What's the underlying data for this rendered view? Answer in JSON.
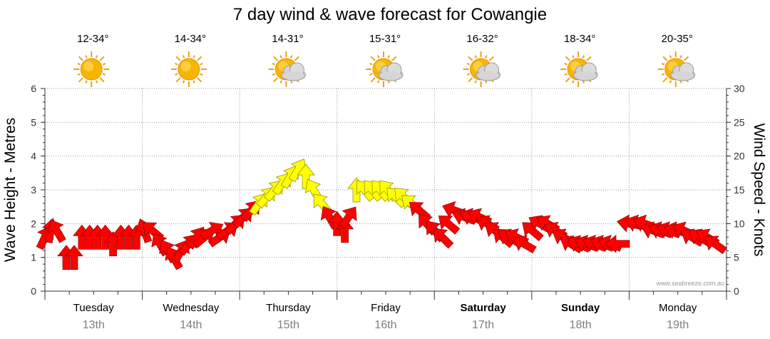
{
  "chart_data": {
    "type": "wind_arrows",
    "title": "7 day wind & wave forecast for Cowangie",
    "ylabel_left": "Wave Height - Metres",
    "ylabel_right": "Wind Speed - Knots",
    "ylim_left": [
      0,
      6
    ],
    "ylim_right": [
      0,
      30
    ],
    "left_ticks": [
      "0",
      "1",
      "2",
      "3",
      "4",
      "5",
      "6"
    ],
    "right_ticks": [
      "0",
      "5",
      "10",
      "15",
      "20",
      "25",
      "30"
    ],
    "credit": "www.seabreeze.com.au",
    "colors": {
      "calm": "#ff0000",
      "strong": "#ffff00"
    },
    "days": [
      {
        "name": "Tuesday",
        "date": "13th",
        "temp": "12-34°",
        "icon": "sun-icon",
        "bold": false
      },
      {
        "name": "Wednesday",
        "date": "14th",
        "temp": "14-34°",
        "icon": "sun-icon",
        "bold": false
      },
      {
        "name": "Thursday",
        "date": "15th",
        "temp": "14-31°",
        "icon": "sun-cloud-icon",
        "bold": false
      },
      {
        "name": "Friday",
        "date": "16th",
        "temp": "15-31°",
        "icon": "sun-cloud-icon",
        "bold": false
      },
      {
        "name": "Saturday",
        "date": "17th",
        "temp": "16-32°",
        "icon": "sun-cloud-icon",
        "bold": true
      },
      {
        "name": "Sunday",
        "date": "18th",
        "temp": "18-34°",
        "icon": "sun-cloud-icon",
        "bold": true
      },
      {
        "name": "Monday",
        "date": "19th",
        "temp": "20-35°",
        "icon": "sun-cloud-icon",
        "bold": false
      }
    ],
    "wind": [
      {
        "t": 0.0,
        "speed": 8,
        "dir": 25
      },
      {
        "t": 0.06,
        "speed": 9,
        "dir": 10
      },
      {
        "t": 0.12,
        "speed": 9,
        "dir": 330
      },
      {
        "t": 0.22,
        "speed": 5,
        "dir": 0
      },
      {
        "t": 0.3,
        "speed": 5,
        "dir": 0
      },
      {
        "t": 0.38,
        "speed": 8,
        "dir": 0
      },
      {
        "t": 0.46,
        "speed": 8,
        "dir": 0
      },
      {
        "t": 0.54,
        "speed": 8,
        "dir": 0
      },
      {
        "t": 0.62,
        "speed": 8,
        "dir": 0
      },
      {
        "t": 0.7,
        "speed": 7,
        "dir": 0
      },
      {
        "t": 0.78,
        "speed": 8,
        "dir": 0
      },
      {
        "t": 0.86,
        "speed": 8,
        "dir": 0
      },
      {
        "t": 0.94,
        "speed": 8,
        "dir": 0
      },
      {
        "t": 1.02,
        "speed": 9,
        "dir": 340
      },
      {
        "t": 1.1,
        "speed": 9,
        "dir": 310
      },
      {
        "t": 1.18,
        "speed": 7,
        "dir": 330
      },
      {
        "t": 1.26,
        "speed": 6,
        "dir": 330
      },
      {
        "t": 1.32,
        "speed": 5,
        "dir": 330
      },
      {
        "t": 1.4,
        "speed": 6,
        "dir": 30
      },
      {
        "t": 1.48,
        "speed": 7,
        "dir": 40
      },
      {
        "t": 1.56,
        "speed": 8,
        "dir": 35
      },
      {
        "t": 1.64,
        "speed": 8,
        "dir": 50
      },
      {
        "t": 1.72,
        "speed": 9,
        "dir": 60
      },
      {
        "t": 1.8,
        "speed": 8,
        "dir": 55
      },
      {
        "t": 1.88,
        "speed": 9,
        "dir": 55
      },
      {
        "t": 1.96,
        "speed": 10,
        "dir": 45
      },
      {
        "t": 2.04,
        "speed": 11,
        "dir": 45
      },
      {
        "t": 2.12,
        "speed": 12,
        "dir": 40
      },
      {
        "t": 2.2,
        "speed": 13,
        "dir": 35
      },
      {
        "t": 2.28,
        "speed": 14,
        "dir": 40
      },
      {
        "t": 2.36,
        "speed": 15,
        "dir": 40
      },
      {
        "t": 2.44,
        "speed": 16,
        "dir": 35
      },
      {
        "t": 2.52,
        "speed": 17,
        "dir": 30
      },
      {
        "t": 2.6,
        "speed": 18,
        "dir": 30
      },
      {
        "t": 2.68,
        "speed": 17,
        "dir": 0
      },
      {
        "t": 2.76,
        "speed": 15,
        "dir": 330
      },
      {
        "t": 2.84,
        "speed": 13,
        "dir": 320
      },
      {
        "t": 2.92,
        "speed": 11,
        "dir": 330
      },
      {
        "t": 3.0,
        "speed": 10,
        "dir": 0
      },
      {
        "t": 3.08,
        "speed": 9,
        "dir": 0
      },
      {
        "t": 3.12,
        "speed": 11,
        "dir": 35
      },
      {
        "t": 3.2,
        "speed": 15,
        "dir": 0
      },
      {
        "t": 3.28,
        "speed": 15,
        "dir": 320
      },
      {
        "t": 3.36,
        "speed": 15,
        "dir": 320
      },
      {
        "t": 3.44,
        "speed": 15,
        "dir": 320
      },
      {
        "t": 3.52,
        "speed": 15,
        "dir": 320
      },
      {
        "t": 3.6,
        "speed": 14,
        "dir": 315
      },
      {
        "t": 3.68,
        "speed": 14,
        "dir": 315
      },
      {
        "t": 3.76,
        "speed": 13,
        "dir": 310
      },
      {
        "t": 3.84,
        "speed": 12,
        "dir": 310
      },
      {
        "t": 3.92,
        "speed": 10,
        "dir": 320
      },
      {
        "t": 4.0,
        "speed": 9,
        "dir": 320
      },
      {
        "t": 4.08,
        "speed": 8,
        "dir": 315
      },
      {
        "t": 4.14,
        "speed": 10,
        "dir": 310
      },
      {
        "t": 4.2,
        "speed": 12,
        "dir": 290
      },
      {
        "t": 4.3,
        "speed": 11,
        "dir": 290
      },
      {
        "t": 4.38,
        "speed": 11,
        "dir": 290
      },
      {
        "t": 4.46,
        "speed": 11,
        "dir": 295
      },
      {
        "t": 4.54,
        "speed": 10,
        "dir": 300
      },
      {
        "t": 4.62,
        "speed": 9,
        "dir": 305
      },
      {
        "t": 4.7,
        "speed": 8,
        "dir": 310
      },
      {
        "t": 4.76,
        "speed": 8,
        "dir": 300
      },
      {
        "t": 4.84,
        "speed": 8,
        "dir": 295
      },
      {
        "t": 4.92,
        "speed": 7,
        "dir": 300
      },
      {
        "t": 5.0,
        "speed": 9,
        "dir": 310
      },
      {
        "t": 5.08,
        "speed": 10,
        "dir": 300
      },
      {
        "t": 5.16,
        "speed": 10,
        "dir": 300
      },
      {
        "t": 5.24,
        "speed": 9,
        "dir": 300
      },
      {
        "t": 5.32,
        "speed": 8,
        "dir": 300
      },
      {
        "t": 5.4,
        "speed": 7,
        "dir": 300
      },
      {
        "t": 5.48,
        "speed": 7,
        "dir": 295
      },
      {
        "t": 5.56,
        "speed": 7,
        "dir": 290
      },
      {
        "t": 5.64,
        "speed": 7,
        "dir": 290
      },
      {
        "t": 5.72,
        "speed": 7,
        "dir": 290
      },
      {
        "t": 5.8,
        "speed": 7,
        "dir": 290
      },
      {
        "t": 5.88,
        "speed": 7,
        "dir": 270
      },
      {
        "t": 6.0,
        "speed": 10,
        "dir": 280
      },
      {
        "t": 6.08,
        "speed": 10,
        "dir": 290
      },
      {
        "t": 6.16,
        "speed": 10,
        "dir": 290
      },
      {
        "t": 6.24,
        "speed": 9,
        "dir": 290
      },
      {
        "t": 6.32,
        "speed": 9,
        "dir": 290
      },
      {
        "t": 6.4,
        "speed": 9,
        "dir": 290
      },
      {
        "t": 6.48,
        "speed": 9,
        "dir": 285
      },
      {
        "t": 6.56,
        "speed": 9,
        "dir": 295
      },
      {
        "t": 6.64,
        "speed": 8,
        "dir": 300
      },
      {
        "t": 6.72,
        "speed": 8,
        "dir": 300
      },
      {
        "t": 6.8,
        "speed": 8,
        "dir": 300
      },
      {
        "t": 6.88,
        "speed": 7,
        "dir": 305
      }
    ]
  }
}
